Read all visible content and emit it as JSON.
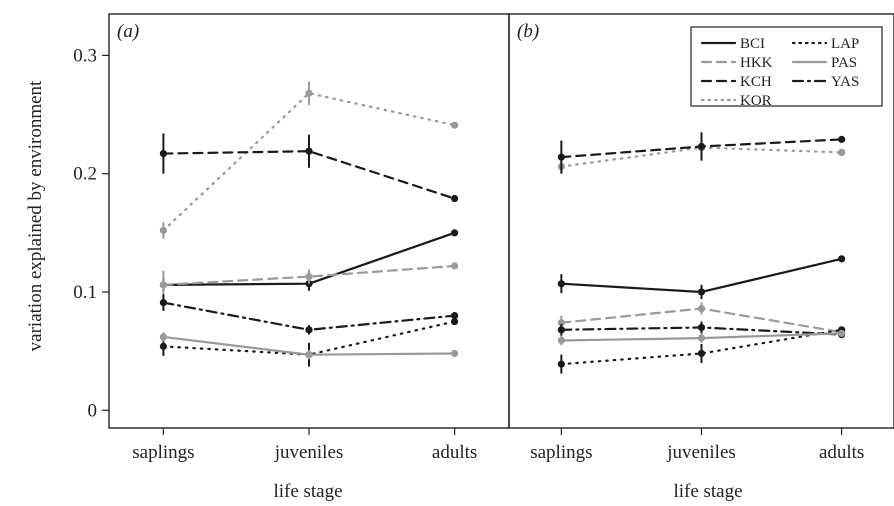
{
  "chart_data": {
    "type": "line",
    "ylabel": "variation explained by environment",
    "ylim": [
      -0.015,
      0.335
    ],
    "yticks": [
      0,
      0.1,
      0.2,
      0.3
    ],
    "ytick_labels": [
      "0",
      "0.1",
      "0.2",
      "0.3"
    ],
    "categories": [
      "saplings",
      "juveniles",
      "adults"
    ],
    "xlabel": "life stage",
    "grid": false,
    "legend": {
      "panel": "b",
      "position": "top-right",
      "entries": [
        {
          "label": "BCI",
          "color": "#1a1a1a",
          "dash": "solid"
        },
        {
          "label": "LAP",
          "color": "#1a1a1a",
          "dash": "dotted"
        },
        {
          "label": "HKK",
          "color": "#999999",
          "dash": "dashed"
        },
        {
          "label": "PAS",
          "color": "#999999",
          "dash": "solid"
        },
        {
          "label": "KCH",
          "color": "#1a1a1a",
          "dash": "dashed"
        },
        {
          "label": "YAS",
          "color": "#1a1a1a",
          "dash": "dashdot"
        },
        {
          "label": "KOR",
          "color": "#999999",
          "dash": "dotted"
        }
      ]
    },
    "panels": [
      {
        "id": "a",
        "label": "(a)",
        "series": [
          {
            "name": "KOR",
            "color": "#999999",
            "dash": "dotted",
            "values": [
              0.152,
              0.268,
              0.241
            ],
            "err": [
              0.007,
              0.01,
              0.0
            ]
          },
          {
            "name": "KCH",
            "color": "#1a1a1a",
            "dash": "dashed",
            "values": [
              0.217,
              0.219,
              0.179
            ],
            "err": [
              0.017,
              0.014,
              0.0
            ]
          },
          {
            "name": "BCI",
            "color": "#1a1a1a",
            "dash": "solid",
            "values": [
              0.106,
              0.107,
              0.15
            ],
            "err": [
              0.006,
              0.006,
              0.0
            ]
          },
          {
            "name": "HKK",
            "color": "#999999",
            "dash": "dashed",
            "values": [
              0.106,
              0.113,
              0.122
            ],
            "err": [
              0.012,
              0.006,
              0.0
            ]
          },
          {
            "name": "YAS",
            "color": "#1a1a1a",
            "dash": "dashdot",
            "values": [
              0.091,
              0.068,
              0.08
            ],
            "err": [
              0.007,
              0.004,
              0.0
            ]
          },
          {
            "name": "LAP",
            "color": "#1a1a1a",
            "dash": "dotted",
            "values": [
              0.054,
              0.047,
              0.075
            ],
            "err": [
              0.008,
              0.01,
              0.0
            ]
          },
          {
            "name": "PAS",
            "color": "#999999",
            "dash": "solid",
            "values": [
              0.062,
              0.047,
              0.048
            ],
            "err": [
              0.004,
              0.004,
              0.0
            ]
          }
        ]
      },
      {
        "id": "b",
        "label": "(b)",
        "series": [
          {
            "name": "KOR",
            "color": "#999999",
            "dash": "dotted",
            "values": [
              0.206,
              0.222,
              0.218
            ],
            "err": [
              0.005,
              0.006,
              0.0
            ]
          },
          {
            "name": "KCH",
            "color": "#1a1a1a",
            "dash": "dashed",
            "values": [
              0.214,
              0.223,
              0.229
            ],
            "err": [
              0.014,
              0.012,
              0.0
            ]
          },
          {
            "name": "BCI",
            "color": "#1a1a1a",
            "dash": "solid",
            "values": [
              0.107,
              0.1,
              0.128
            ],
            "err": [
              0.008,
              0.006,
              0.0
            ]
          },
          {
            "name": "HKK",
            "color": "#999999",
            "dash": "dashed",
            "values": [
              0.074,
              0.086,
              0.066
            ],
            "err": [
              0.006,
              0.005,
              0.0
            ]
          },
          {
            "name": "YAS",
            "color": "#1a1a1a",
            "dash": "dashdot",
            "values": [
              0.068,
              0.07,
              0.064
            ],
            "err": [
              0.005,
              0.005,
              0.0
            ]
          },
          {
            "name": "LAP",
            "color": "#1a1a1a",
            "dash": "dotted",
            "values": [
              0.039,
              0.048,
              0.068
            ],
            "err": [
              0.008,
              0.008,
              0.0
            ]
          },
          {
            "name": "PAS",
            "color": "#999999",
            "dash": "solid",
            "values": [
              0.059,
              0.061,
              0.065
            ],
            "err": [
              0.004,
              0.004,
              0.0
            ]
          }
        ]
      }
    ]
  }
}
